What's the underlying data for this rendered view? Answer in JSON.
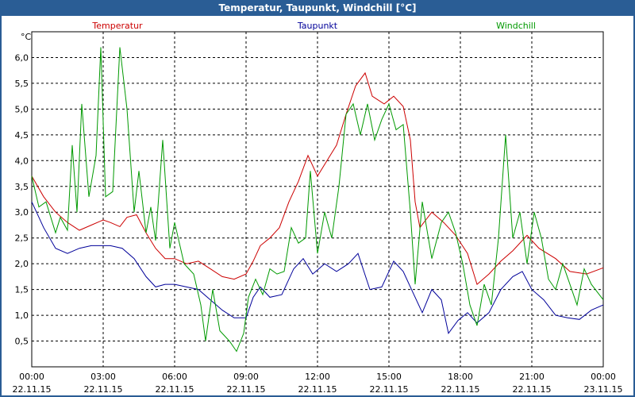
{
  "window": {
    "title": "Temperatur, Taupunkt, Windchill [°C]"
  },
  "chart_data": {
    "type": "line",
    "title": "Temperatur, Taupunkt, Windchill [°C]",
    "ylabel": "°C",
    "ylim": [
      0,
      6.5
    ],
    "y_ticks": [
      "0,5",
      "1,0",
      "1,5",
      "2,0",
      "2,5",
      "3,0",
      "3,5",
      "4,0",
      "4,5",
      "5,0",
      "5,5",
      "6,0"
    ],
    "y_tick_values": [
      0.5,
      1,
      1.5,
      2,
      2.5,
      3,
      3.5,
      4,
      4.5,
      5,
      5.5,
      6
    ],
    "xlim": [
      0,
      24
    ],
    "x_ticks": [
      {
        "time": "00:00",
        "date": "22.11.15",
        "h": 0
      },
      {
        "time": "03:00",
        "date": "22.11.15",
        "h": 3
      },
      {
        "time": "06:00",
        "date": "22.11.15",
        "h": 6
      },
      {
        "time": "09:00",
        "date": "22.11.15",
        "h": 9
      },
      {
        "time": "12:00",
        "date": "22.11.15",
        "h": 12
      },
      {
        "time": "15:00",
        "date": "22.11.15",
        "h": 15
      },
      {
        "time": "18:00",
        "date": "22.11.15",
        "h": 18
      },
      {
        "time": "21:00",
        "date": "22.11.15",
        "h": 21
      },
      {
        "time": "00:00",
        "date": "23.11.15",
        "h": 24
      }
    ],
    "grid": true,
    "legend": "top",
    "series": [
      {
        "name": "Temperatur",
        "color": "#cc0000",
        "points": [
          [
            0,
            3.7
          ],
          [
            0.5,
            3.3
          ],
          [
            1,
            3.0
          ],
          [
            1.5,
            2.8
          ],
          [
            2,
            2.65
          ],
          [
            2.5,
            2.75
          ],
          [
            3,
            2.85
          ],
          [
            3.3,
            2.8
          ],
          [
            3.7,
            2.72
          ],
          [
            4,
            2.9
          ],
          [
            4.4,
            2.95
          ],
          [
            4.8,
            2.6
          ],
          [
            5.2,
            2.3
          ],
          [
            5.6,
            2.1
          ],
          [
            6,
            2.1
          ],
          [
            6.5,
            2.0
          ],
          [
            7,
            2.05
          ],
          [
            7.5,
            1.9
          ],
          [
            8,
            1.75
          ],
          [
            8.5,
            1.7
          ],
          [
            9,
            1.8
          ],
          [
            9.3,
            2.05
          ],
          [
            9.6,
            2.35
          ],
          [
            10,
            2.5
          ],
          [
            10.4,
            2.7
          ],
          [
            10.8,
            3.2
          ],
          [
            11.2,
            3.6
          ],
          [
            11.6,
            4.1
          ],
          [
            12,
            3.7
          ],
          [
            12.4,
            4.0
          ],
          [
            12.8,
            4.3
          ],
          [
            13.2,
            4.9
          ],
          [
            13.6,
            5.45
          ],
          [
            14,
            5.7
          ],
          [
            14.3,
            5.25
          ],
          [
            14.8,
            5.1
          ],
          [
            15.2,
            5.25
          ],
          [
            15.6,
            5.05
          ],
          [
            15.9,
            4.4
          ],
          [
            16.1,
            3.2
          ],
          [
            16.3,
            2.7
          ],
          [
            16.8,
            3.0
          ],
          [
            17.3,
            2.8
          ],
          [
            17.8,
            2.55
          ],
          [
            18.3,
            2.2
          ],
          [
            18.7,
            1.6
          ],
          [
            19.2,
            1.8
          ],
          [
            19.7,
            2.05
          ],
          [
            20.2,
            2.25
          ],
          [
            20.8,
            2.55
          ],
          [
            21.3,
            2.3
          ],
          [
            22,
            2.1
          ],
          [
            22.6,
            1.85
          ],
          [
            23.3,
            1.8
          ],
          [
            24,
            1.92
          ]
        ]
      },
      {
        "name": "Taupunkt",
        "color": "#000099",
        "points": [
          [
            0,
            3.2
          ],
          [
            0.5,
            2.7
          ],
          [
            1,
            2.3
          ],
          [
            1.5,
            2.2
          ],
          [
            2,
            2.3
          ],
          [
            2.5,
            2.35
          ],
          [
            2.9,
            2.35
          ],
          [
            3.3,
            2.35
          ],
          [
            3.8,
            2.3
          ],
          [
            4.3,
            2.1
          ],
          [
            4.8,
            1.75
          ],
          [
            5.2,
            1.55
          ],
          [
            5.6,
            1.6
          ],
          [
            6,
            1.6
          ],
          [
            6.5,
            1.55
          ],
          [
            7,
            1.5
          ],
          [
            7.5,
            1.3
          ],
          [
            8,
            1.1
          ],
          [
            8.5,
            0.95
          ],
          [
            9,
            0.95
          ],
          [
            9.3,
            1.35
          ],
          [
            9.6,
            1.55
          ],
          [
            10,
            1.35
          ],
          [
            10.5,
            1.4
          ],
          [
            11,
            1.9
          ],
          [
            11.4,
            2.1
          ],
          [
            11.8,
            1.8
          ],
          [
            12.3,
            2.0
          ],
          [
            12.8,
            1.85
          ],
          [
            13.3,
            2.0
          ],
          [
            13.7,
            2.2
          ],
          [
            14.2,
            1.5
          ],
          [
            14.7,
            1.55
          ],
          [
            15.2,
            2.05
          ],
          [
            15.6,
            1.85
          ],
          [
            16,
            1.45
          ],
          [
            16.4,
            1.05
          ],
          [
            16.8,
            1.5
          ],
          [
            17.2,
            1.3
          ],
          [
            17.5,
            0.65
          ],
          [
            17.9,
            0.9
          ],
          [
            18.3,
            1.05
          ],
          [
            18.7,
            0.85
          ],
          [
            19.2,
            1.05
          ],
          [
            19.7,
            1.5
          ],
          [
            20.2,
            1.75
          ],
          [
            20.6,
            1.85
          ],
          [
            21,
            1.5
          ],
          [
            21.5,
            1.3
          ],
          [
            22,
            1.0
          ],
          [
            22.5,
            0.95
          ],
          [
            23,
            0.92
          ],
          [
            23.5,
            1.1
          ],
          [
            24,
            1.2
          ]
        ]
      },
      {
        "name": "Windchill",
        "color": "#009900",
        "points": [
          [
            0,
            3.7
          ],
          [
            0.3,
            3.1
          ],
          [
            0.6,
            3.2
          ],
          [
            1,
            2.6
          ],
          [
            1.2,
            2.9
          ],
          [
            1.5,
            2.65
          ],
          [
            1.7,
            4.3
          ],
          [
            1.9,
            3.0
          ],
          [
            2.1,
            5.1
          ],
          [
            2.4,
            3.3
          ],
          [
            2.7,
            4.1
          ],
          [
            2.9,
            6.2
          ],
          [
            3.1,
            3.3
          ],
          [
            3.4,
            3.4
          ],
          [
            3.7,
            6.2
          ],
          [
            4.0,
            5.0
          ],
          [
            4.3,
            3.0
          ],
          [
            4.5,
            3.8
          ],
          [
            4.8,
            2.6
          ],
          [
            5.0,
            3.1
          ],
          [
            5.2,
            2.45
          ],
          [
            5.5,
            4.4
          ],
          [
            5.8,
            2.3
          ],
          [
            6.0,
            2.8
          ],
          [
            6.4,
            2.0
          ],
          [
            6.8,
            1.8
          ],
          [
            7.1,
            1.2
          ],
          [
            7.3,
            0.5
          ],
          [
            7.6,
            1.5
          ],
          [
            7.9,
            0.7
          ],
          [
            8.3,
            0.5
          ],
          [
            8.6,
            0.3
          ],
          [
            8.9,
            0.65
          ],
          [
            9.1,
            1.35
          ],
          [
            9.4,
            1.7
          ],
          [
            9.7,
            1.4
          ],
          [
            10,
            1.9
          ],
          [
            10.3,
            1.8
          ],
          [
            10.6,
            1.85
          ],
          [
            10.9,
            2.7
          ],
          [
            11.2,
            2.4
          ],
          [
            11.5,
            2.5
          ],
          [
            11.7,
            3.8
          ],
          [
            12.0,
            2.2
          ],
          [
            12.3,
            3.0
          ],
          [
            12.6,
            2.5
          ],
          [
            12.9,
            3.5
          ],
          [
            13.2,
            4.9
          ],
          [
            13.5,
            5.1
          ],
          [
            13.8,
            4.5
          ],
          [
            14.1,
            5.1
          ],
          [
            14.4,
            4.4
          ],
          [
            14.7,
            4.8
          ],
          [
            15.0,
            5.1
          ],
          [
            15.3,
            4.6
          ],
          [
            15.6,
            4.7
          ],
          [
            15.9,
            3.0
          ],
          [
            16.1,
            1.6
          ],
          [
            16.4,
            3.2
          ],
          [
            16.8,
            2.1
          ],
          [
            17.2,
            2.8
          ],
          [
            17.5,
            3.0
          ],
          [
            17.8,
            2.6
          ],
          [
            18.1,
            2.0
          ],
          [
            18.4,
            1.2
          ],
          [
            18.7,
            0.8
          ],
          [
            19.0,
            1.6
          ],
          [
            19.3,
            1.2
          ],
          [
            19.6,
            2.5
          ],
          [
            19.9,
            4.5
          ],
          [
            20.2,
            2.5
          ],
          [
            20.5,
            3.0
          ],
          [
            20.8,
            2.0
          ],
          [
            21.1,
            3.0
          ],
          [
            21.4,
            2.5
          ],
          [
            21.7,
            1.7
          ],
          [
            22.0,
            1.5
          ],
          [
            22.3,
            2.0
          ],
          [
            22.6,
            1.6
          ],
          [
            22.9,
            1.2
          ],
          [
            23.2,
            1.9
          ],
          [
            23.5,
            1.6
          ],
          [
            24,
            1.3
          ]
        ]
      }
    ]
  }
}
